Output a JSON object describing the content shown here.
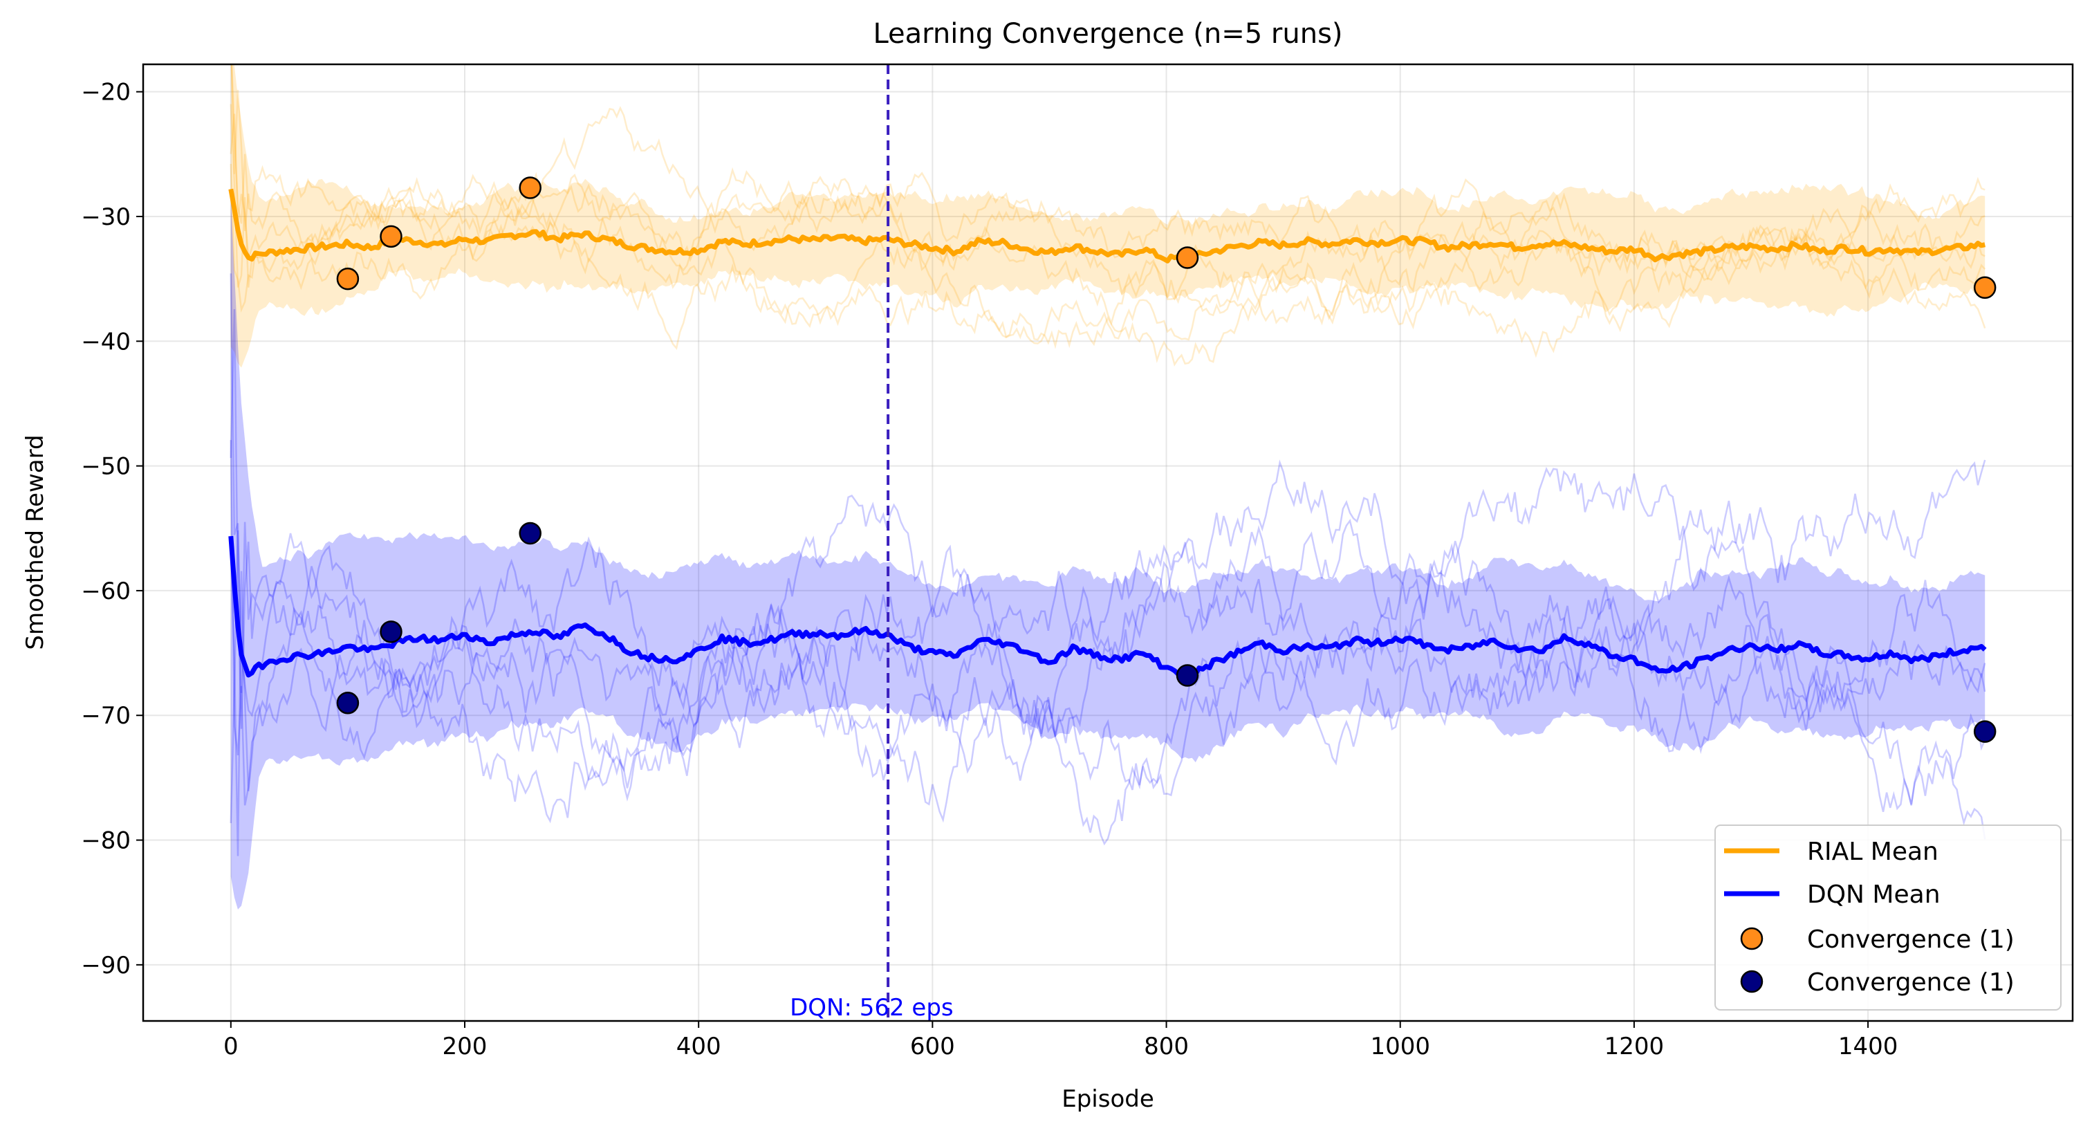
{
  "chart_data": {
    "type": "line",
    "title": "Learning Convergence (n=5 runs)",
    "xlabel": "Episode",
    "ylabel": "Smoothed Reward",
    "xlim": [
      -75,
      1575
    ],
    "ylim": [
      -94.5,
      -17.8
    ],
    "xticks": [
      0,
      200,
      400,
      600,
      800,
      1000,
      1200,
      1400
    ],
    "yticks": [
      -20,
      -30,
      -40,
      -50,
      -60,
      -70,
      -80,
      -90
    ],
    "grid": true,
    "legend_position": "lower-right",
    "colors": {
      "rial": "#ffa500",
      "dqn": "#0000ff",
      "rial_marker": "#ff8c1a",
      "dqn_marker": "#00007f",
      "vline": "#3a1fbf"
    },
    "series": [
      {
        "name": "RIAL Mean",
        "color": "#ffa500",
        "x": [
          0,
          5,
          10,
          15,
          25,
          40,
          60,
          80,
          100,
          120,
          140,
          160,
          180,
          200,
          220,
          240,
          260,
          280,
          300,
          320,
          340,
          360,
          380,
          400,
          420,
          440,
          460,
          480,
          500,
          520,
          540,
          560,
          580,
          600,
          620,
          640,
          660,
          680,
          700,
          720,
          740,
          760,
          780,
          800,
          820,
          840,
          860,
          880,
          900,
          920,
          940,
          960,
          980,
          1000,
          1020,
          1040,
          1060,
          1080,
          1100,
          1120,
          1140,
          1160,
          1180,
          1200,
          1220,
          1240,
          1260,
          1280,
          1300,
          1320,
          1340,
          1360,
          1380,
          1400,
          1420,
          1440,
          1460,
          1480,
          1500
        ],
        "values": [
          -27.8,
          -30.5,
          -32.5,
          -33.3,
          -33.0,
          -32.8,
          -32.6,
          -32.4,
          -32.2,
          -32.5,
          -31.8,
          -32.0,
          -32.3,
          -31.8,
          -32.0,
          -31.5,
          -31.3,
          -31.8,
          -31.4,
          -31.8,
          -32.3,
          -32.6,
          -32.8,
          -32.7,
          -32.0,
          -32.2,
          -32.0,
          -31.8,
          -31.9,
          -31.7,
          -32.0,
          -31.8,
          -32.2,
          -32.5,
          -32.8,
          -32.0,
          -32.1,
          -32.6,
          -32.9,
          -32.4,
          -32.8,
          -33.1,
          -32.6,
          -33.4,
          -33.3,
          -32.8,
          -32.4,
          -32.1,
          -32.3,
          -32.0,
          -32.2,
          -31.9,
          -32.1,
          -31.9,
          -32.0,
          -32.5,
          -32.3,
          -32.1,
          -32.5,
          -32.2,
          -32.2,
          -32.5,
          -32.8,
          -32.6,
          -33.3,
          -33.0,
          -32.8,
          -32.5,
          -32.4,
          -32.6,
          -32.3,
          -32.8,
          -32.5,
          -32.8,
          -32.6,
          -32.9,
          -32.7,
          -32.5,
          -32.2
        ]
      },
      {
        "name": "DQN Mean",
        "color": "#0000ff",
        "x": [
          0,
          5,
          10,
          15,
          25,
          40,
          60,
          80,
          100,
          120,
          140,
          160,
          180,
          200,
          220,
          240,
          260,
          280,
          300,
          320,
          340,
          360,
          380,
          400,
          420,
          440,
          460,
          480,
          500,
          520,
          540,
          560,
          580,
          600,
          620,
          640,
          660,
          680,
          700,
          720,
          740,
          760,
          780,
          800,
          820,
          840,
          860,
          880,
          900,
          920,
          940,
          960,
          980,
          1000,
          1020,
          1040,
          1060,
          1080,
          1100,
          1120,
          1140,
          1160,
          1180,
          1200,
          1220,
          1240,
          1260,
          1280,
          1300,
          1320,
          1340,
          1360,
          1380,
          1400,
          1420,
          1440,
          1460,
          1480,
          1500
        ],
        "values": [
          -55.5,
          -62.0,
          -65.8,
          -66.8,
          -66.0,
          -65.5,
          -65.2,
          -65.0,
          -64.5,
          -64.8,
          -64.2,
          -63.8,
          -64.0,
          -63.5,
          -64.2,
          -63.6,
          -63.2,
          -63.8,
          -62.8,
          -63.5,
          -64.8,
          -65.4,
          -65.5,
          -64.8,
          -63.8,
          -64.2,
          -64.0,
          -63.5,
          -63.4,
          -63.6,
          -63.2,
          -63.5,
          -64.5,
          -65.0,
          -65.2,
          -64.0,
          -64.2,
          -64.8,
          -65.8,
          -64.6,
          -65.2,
          -65.5,
          -65.0,
          -66.2,
          -66.8,
          -65.8,
          -65.0,
          -64.2,
          -64.8,
          -64.5,
          -64.6,
          -64.0,
          -64.2,
          -63.8,
          -64.3,
          -64.8,
          -64.5,
          -64.0,
          -64.6,
          -64.8,
          -63.8,
          -64.2,
          -65.2,
          -65.5,
          -66.5,
          -66.2,
          -65.5,
          -64.8,
          -64.4,
          -64.8,
          -64.3,
          -65.0,
          -65.2,
          -65.5,
          -65.0,
          -65.6,
          -65.2,
          -64.8,
          -64.5
        ]
      }
    ],
    "convergence_points": [
      {
        "name": "Convergence (1)",
        "color": "#ff8c1a",
        "x": [
          100,
          137,
          256,
          818,
          1500
        ],
        "y": [
          -35.0,
          -31.6,
          -27.7,
          -33.3,
          -35.7
        ]
      },
      {
        "name": "Convergence (1)",
        "color": "#00007f",
        "x": [
          100,
          137,
          256,
          818,
          1500
        ],
        "y": [
          -69.0,
          -63.3,
          -55.4,
          -66.8,
          -71.3
        ]
      }
    ],
    "vline": {
      "x": 562,
      "label": "DQN: 562 eps",
      "style": "dashed"
    },
    "legend": [
      "RIAL Mean",
      "DQN Mean",
      "Convergence (1)",
      "Convergence (1)"
    ]
  }
}
